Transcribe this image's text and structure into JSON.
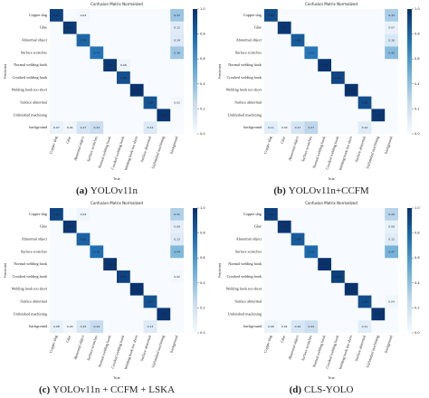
{
  "chart_data": [
    {
      "type": "heatmap",
      "title": "Confusion Matrix Normalized",
      "panel": "(a)",
      "caption": "YOLOv11n",
      "x_label": "True",
      "y_label": "Predicted",
      "categories": [
        "Copper slag",
        "Glue",
        "Abnormal object",
        "Surface scratches",
        "Normal welding hook",
        "Crooked welding hook",
        "Welding hook too short",
        "Surface abnormal",
        "Unfinished machining",
        "background"
      ],
      "values": [
        [
          0.93,
          null,
          0.03,
          null,
          null,
          null,
          null,
          null,
          null,
          0.37
        ],
        [
          null,
          0.96,
          null,
          null,
          null,
          null,
          null,
          null,
          null,
          0.12
        ],
        [
          null,
          null,
          0.79,
          null,
          null,
          null,
          null,
          null,
          null,
          0.14
        ],
        [
          null,
          null,
          null,
          0.74,
          null,
          null,
          null,
          null,
          null,
          0.36
        ],
        [
          null,
          null,
          null,
          null,
          0.97,
          0.06,
          null,
          null,
          null,
          null
        ],
        [
          null,
          null,
          null,
          null,
          null,
          0.88,
          null,
          null,
          null,
          null
        ],
        [
          null,
          null,
          null,
          null,
          null,
          null,
          0.99,
          null,
          null,
          null
        ],
        [
          null,
          null,
          null,
          null,
          null,
          null,
          null,
          0.86,
          null,
          0.02
        ],
        [
          null,
          null,
          null,
          null,
          null,
          null,
          null,
          null,
          0.98,
          null
        ],
        [
          0.07,
          0.04,
          0.17,
          0.23,
          null,
          null,
          null,
          0.14,
          null,
          null
        ]
      ],
      "colorbar_ticks": [
        {
          "value": 0,
          "label": "0.0"
        },
        0.2,
        0.4,
        0.6,
        0.8,
        {
          "value": 1,
          "label": "1.0"
        }
      ]
    },
    {
      "type": "heatmap",
      "title": "Confusion Matrix Normalized",
      "panel": "(b)",
      "caption": "YOLOv11n+CCFM",
      "x_label": "True",
      "y_label": "Predicted",
      "categories": [
        "Copper slag",
        "Glue",
        "Abnormal object",
        "Surface scratches",
        "Normal welding hook",
        "Crooked welding hook",
        "Welding hook too short",
        "Surface abnormal",
        "Unfinished machining",
        "background"
      ],
      "values": [
        [
          0.89,
          null,
          null,
          null,
          null,
          null,
          null,
          null,
          null,
          0.33
        ],
        [
          null,
          0.97,
          null,
          null,
          null,
          null,
          null,
          null,
          null,
          0.07
        ],
        [
          null,
          null,
          0.83,
          null,
          null,
          null,
          null,
          null,
          null,
          0.16
        ],
        [
          null,
          null,
          null,
          0.73,
          null,
          null,
          null,
          null,
          null,
          0.42
        ],
        [
          null,
          null,
          null,
          null,
          0.98,
          null,
          null,
          null,
          null,
          null
        ],
        [
          null,
          null,
          null,
          null,
          null,
          0.91,
          null,
          null,
          null,
          null
        ],
        [
          null,
          null,
          null,
          null,
          null,
          null,
          0.99,
          null,
          null,
          null
        ],
        [
          null,
          null,
          null,
          null,
          null,
          null,
          null,
          0.88,
          null,
          null
        ],
        [
          null,
          null,
          null,
          null,
          null,
          null,
          null,
          null,
          0.97,
          null
        ],
        [
          0.11,
          0.03,
          0.17,
          0.27,
          null,
          null,
          null,
          0.12,
          null,
          null
        ]
      ],
      "colorbar_ticks": [
        {
          "value": 0,
          "label": "0.0"
        },
        0.2,
        0.4,
        0.6,
        0.8,
        {
          "value": 1,
          "label": "1.0"
        }
      ]
    },
    {
      "type": "heatmap",
      "title": "Confusion Matrix Normalized",
      "panel": "(c)",
      "caption": "YOLOv11n + CCFM + LSKA",
      "x_label": "True",
      "y_label": "Predicted",
      "categories": [
        "Copper slag",
        "Glue",
        "Abnormal object",
        "Surface scratches",
        "Normal welding hook",
        "Crooked welding hook",
        "Welding hook too short",
        "Surface abnormal",
        "Unfinished machining",
        "background"
      ],
      "values": [
        [
          0.92,
          null,
          0.04,
          null,
          null,
          null,
          null,
          null,
          null,
          0.31
        ],
        [
          null,
          0.97,
          null,
          null,
          null,
          null,
          null,
          null,
          null,
          0.09
        ],
        [
          null,
          null,
          0.81,
          null,
          null,
          null,
          null,
          null,
          null,
          0.13
        ],
        [
          null,
          null,
          null,
          0.76,
          null,
          null,
          null,
          null,
          null,
          0.44
        ],
        [
          null,
          null,
          null,
          null,
          0.98,
          null,
          null,
          null,
          null,
          null
        ],
        [
          null,
          null,
          null,
          null,
          null,
          0.93,
          null,
          null,
          null,
          0.02
        ],
        [
          null,
          null,
          null,
          null,
          null,
          null,
          0.99,
          null,
          null,
          null
        ],
        [
          null,
          null,
          null,
          null,
          null,
          null,
          null,
          0.87,
          null,
          null
        ],
        [
          null,
          null,
          null,
          null,
          null,
          null,
          null,
          null,
          0.98,
          null
        ],
        [
          0.08,
          0.03,
          0.15,
          0.24,
          null,
          null,
          null,
          0.13,
          null,
          null
        ]
      ],
      "colorbar_ticks": [
        {
          "value": 0,
          "label": "0.0"
        },
        0.2,
        0.4,
        0.6,
        0.8,
        {
          "value": 1,
          "label": "1.0"
        }
      ]
    },
    {
      "type": "heatmap",
      "title": "Confusion Matrix Normalized",
      "panel": "(d)",
      "caption": "CLS-YOLO",
      "x_label": "True",
      "y_label": "Predicted",
      "categories": [
        "Copper slag",
        "Glue",
        "Abnormal object",
        "Surface scratches",
        "Normal welding hook",
        "Crooked welding hook",
        "Welding hook too short",
        "Surface abnormal",
        "Unfinished machining",
        "background"
      ],
      "values": [
        [
          0.94,
          null,
          null,
          null,
          null,
          null,
          null,
          null,
          null,
          0.29
        ],
        [
          null,
          0.98,
          null,
          null,
          null,
          null,
          null,
          null,
          null,
          0.08
        ],
        [
          null,
          null,
          0.84,
          null,
          null,
          null,
          null,
          null,
          null,
          0.12
        ],
        [
          null,
          null,
          null,
          0.78,
          null,
          null,
          null,
          null,
          null,
          0.47
        ],
        [
          null,
          null,
          null,
          null,
          0.99,
          null,
          null,
          null,
          null,
          null
        ],
        [
          null,
          null,
          null,
          null,
          null,
          0.94,
          null,
          null,
          null,
          null
        ],
        [
          null,
          null,
          null,
          null,
          null,
          null,
          0.99,
          null,
          null,
          null
        ],
        [
          null,
          null,
          null,
          null,
          null,
          null,
          null,
          0.89,
          null,
          0.04
        ],
        [
          null,
          null,
          null,
          null,
          null,
          null,
          null,
          null,
          0.98,
          null
        ],
        [
          0.06,
          0.02,
          0.16,
          0.22,
          null,
          null,
          null,
          0.11,
          null,
          null
        ]
      ],
      "colorbar_ticks": [
        {
          "value": 0,
          "label": "0.0"
        },
        0.2,
        0.4,
        0.6,
        0.8,
        {
          "value": 1,
          "label": "1.0"
        }
      ]
    }
  ]
}
